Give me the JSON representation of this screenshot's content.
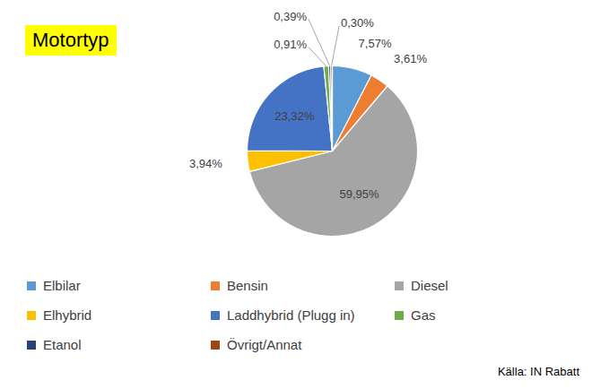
{
  "chart_data": {
    "type": "pie",
    "title": "Motortyp",
    "categories": [
      "Elbilar",
      "Bensin",
      "Diesel",
      "Elhybrid",
      "Laddhybrid (Plugg in)",
      "Gas",
      "Etanol",
      "Övrigt/Annat"
    ],
    "values": [
      7.57,
      3.61,
      59.95,
      3.94,
      23.32,
      0.91,
      0.39,
      0.3
    ],
    "value_labels": [
      "7,57%",
      "3,61%",
      "59,95%",
      "3,94%",
      "23,32%",
      "0,91%",
      "0,39%",
      "0,30%"
    ],
    "colors": [
      "#5b9bd5",
      "#ed7d31",
      "#a5a5a5",
      "#ffc000",
      "#4472c4",
      "#70ad47",
      "#264478",
      "#9e480e"
    ],
    "data_labels": true,
    "legend": "bottom",
    "source": "Källa: IN Rabatt"
  }
}
